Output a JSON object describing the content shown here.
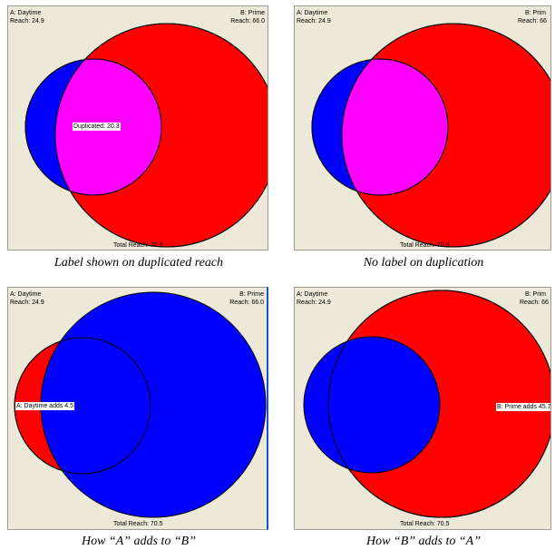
{
  "colors": {
    "red": "#ff0000",
    "blue": "#0000ff",
    "magenta": "#ff00ff",
    "panel_bg": "#ece9d8"
  },
  "panels": [
    {
      "set_a": {
        "name": "A: Daytime",
        "reach": "Reach: 24.9"
      },
      "set_b": {
        "name": "B: Prime",
        "reach": "Reach: 66.0"
      },
      "overlap_label": "Duplicated: 20.3",
      "total": "Total Reach: 70.5",
      "caption": "Label shown on duplicated reach"
    },
    {
      "set_a": {
        "name": "A: Daytime",
        "reach": "Reach: 24.9"
      },
      "set_b": {
        "name": "B: Prim",
        "reach": "Reach: 66"
      },
      "total": "Total Reach: 70.5",
      "caption": "No label on duplication"
    },
    {
      "set_a": {
        "name": "A: Daytime",
        "reach": "Reach: 24.9"
      },
      "set_b": {
        "name": "B: Prime",
        "reach": "Reach: 66.0"
      },
      "adds_label": "A: Daytime adds 4.5",
      "total": "Total Reach: 70.5",
      "caption": "How “A” adds to “B”"
    },
    {
      "set_a": {
        "name": "A: Daytime",
        "reach": "Reach: 24.9"
      },
      "set_b": {
        "name": "B: Prim",
        "reach": "Reach: 66"
      },
      "adds_label": "B: Prime adds 45.7",
      "total": "Total Reach: 70.5",
      "caption": "How “B” adds to “A”"
    }
  ]
}
